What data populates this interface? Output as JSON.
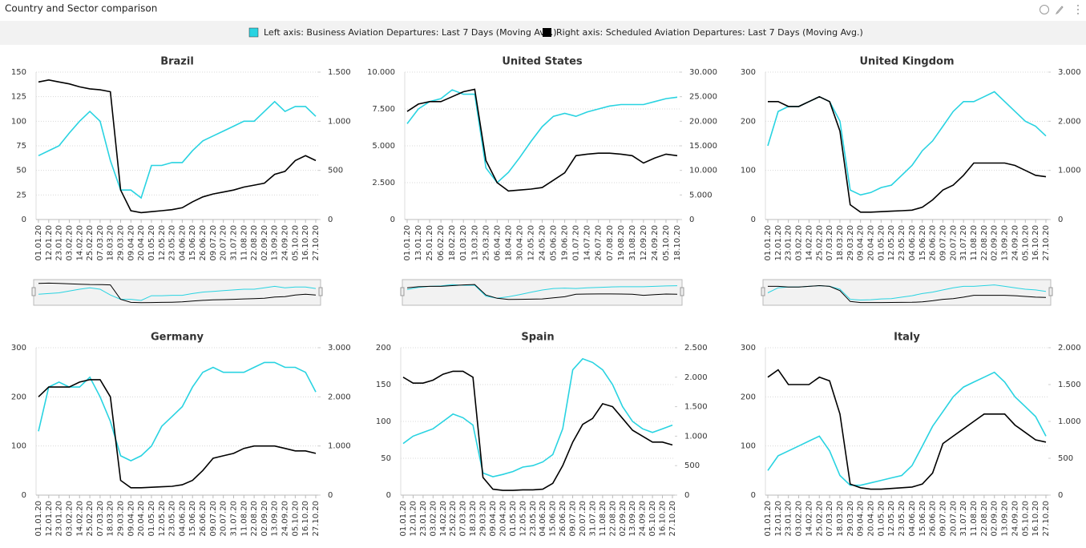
{
  "header": {
    "title": "Country and Sector comparison"
  },
  "chart_data": [
    {
      "type": "line",
      "title": "Brazil",
      "categories": [
        "01.01.20",
        "12.01.20",
        "23.01.20",
        "03.02.20",
        "14.02.20",
        "25.02.20",
        "07.03.20",
        "18.03.20",
        "29.03.20",
        "09.04.20",
        "20.04.20",
        "01.05.20",
        "12.05.20",
        "23.05.20",
        "04.06.20",
        "15.06.20",
        "26.06.20",
        "09.07.20",
        "20.07.20",
        "31.07.20",
        "11.08.20",
        "22.08.20",
        "02.09.20",
        "13.09.20",
        "24.09.20",
        "05.10.20",
        "16.10.20",
        "27.10.20"
      ],
      "series": [
        {
          "name": "Left axis: Business Aviation Departures: Last 7 Days (Moving Avg.)",
          "color": "#29d3e1",
          "values": [
            65,
            70,
            75,
            88,
            100,
            110,
            100,
            60,
            30,
            30,
            22,
            55,
            55,
            58,
            58,
            70,
            80,
            85,
            90,
            95,
            100,
            100,
            110,
            120,
            110,
            115,
            115,
            105
          ]
        },
        {
          "name": "Right axis: Scheduled Aviation Departures: Last 7 Days (Moving Avg.)",
          "color": "#000000",
          "axis": "y2",
          "values": [
            1400,
            1420,
            1400,
            1380,
            1350,
            1330,
            1320,
            1300,
            300,
            90,
            70,
            80,
            90,
            100,
            120,
            180,
            230,
            260,
            280,
            300,
            330,
            350,
            370,
            460,
            490,
            600,
            650,
            600
          ]
        }
      ],
      "ylim": [
        0,
        150
      ],
      "yticks": [
        0,
        25,
        50,
        75,
        100,
        125,
        150
      ],
      "y2lim": [
        0,
        1500
      ],
      "y2ticks": [
        0,
        500,
        {
          "value": 1000,
          "label": "1.000"
        },
        {
          "value": 1500,
          "label": "1.500"
        }
      ],
      "grid": true
    },
    {
      "type": "line",
      "title": "United States",
      "categories": [
        "01.01.20",
        "13.01.20",
        "25.01.20",
        "06.02.20",
        "18.02.20",
        "01.03.20",
        "13.03.20",
        "25.03.20",
        "06.04.20",
        "18.04.20",
        "30.04.20",
        "12.05.20",
        "24.05.20",
        "05.06.20",
        "19.06.20",
        "01.07.20",
        "14.07.20",
        "26.07.20",
        "07.08.20",
        "19.08.20",
        "31.08.20",
        "12.09.20",
        "24.09.20",
        "05.10.20",
        "18.10.20"
      ],
      "series": [
        {
          "color": "#29d3e1",
          "values": [
            6500,
            7500,
            8000,
            8200,
            8800,
            8500,
            8500,
            3500,
            2500,
            3200,
            4200,
            5300,
            6300,
            7000,
            7200,
            7000,
            7300,
            7500,
            7700,
            7800,
            7800,
            7800,
            8000,
            8200,
            8300
          ]
        },
        {
          "color": "#000000",
          "axis": "y2",
          "values": [
            22000,
            23500,
            24000,
            24000,
            25000,
            26000,
            26500,
            12000,
            7500,
            5800,
            6000,
            6200,
            6500,
            8000,
            9500,
            13000,
            13300,
            13500,
            13500,
            13300,
            13000,
            11500,
            12500,
            13300,
            13000
          ]
        }
      ],
      "ylim": [
        0,
        10000
      ],
      "yticks": [
        0,
        {
          "value": 2500,
          "label": "2.500"
        },
        {
          "value": 5000,
          "label": "5.000"
        },
        {
          "value": 7500,
          "label": "7.500"
        },
        {
          "value": 10000,
          "label": "10.000"
        }
      ],
      "y2lim": [
        0,
        30000
      ],
      "y2ticks": [
        0,
        {
          "value": 5000,
          "label": "5.000"
        },
        {
          "value": 10000,
          "label": "10.000"
        },
        {
          "value": 15000,
          "label": "15.000"
        },
        {
          "value": 20000,
          "label": "20.000"
        },
        {
          "value": 25000,
          "label": "25.000"
        },
        {
          "value": 30000,
          "label": "30.000"
        }
      ],
      "grid": true
    },
    {
      "type": "line",
      "title": "United Kingdom",
      "categories": [
        "01.01.20",
        "12.01.20",
        "23.01.20",
        "03.02.20",
        "14.02.20",
        "25.02.20",
        "07.03.20",
        "18.03.20",
        "29.03.20",
        "09.04.20",
        "20.04.20",
        "01.05.20",
        "12.05.20",
        "23.05.20",
        "04.06.20",
        "15.06.20",
        "26.06.20",
        "09.07.20",
        "20.07.20",
        "31.07.20",
        "11.08.20",
        "22.08.20",
        "02.09.20",
        "13.09.20",
        "24.09.20",
        "05.10.20",
        "16.10.20",
        "27.10.20"
      ],
      "series": [
        {
          "color": "#29d3e1",
          "values": [
            150,
            220,
            230,
            230,
            240,
            250,
            240,
            200,
            60,
            50,
            55,
            65,
            70,
            90,
            110,
            140,
            160,
            190,
            220,
            240,
            240,
            250,
            260,
            240,
            220,
            200,
            190,
            170
          ]
        },
        {
          "color": "#000000",
          "axis": "y2",
          "values": [
            2400,
            2400,
            2300,
            2300,
            2400,
            2500,
            2400,
            1800,
            300,
            150,
            150,
            160,
            170,
            180,
            190,
            250,
            400,
            600,
            700,
            900,
            1150,
            1150,
            1150,
            1150,
            1100,
            1000,
            900,
            870
          ]
        }
      ],
      "ylim": [
        0,
        300
      ],
      "yticks": [
        0,
        100,
        200,
        300
      ],
      "y2lim": [
        0,
        3000
      ],
      "y2ticks": [
        0,
        {
          "value": 1000,
          "label": "1.000"
        },
        {
          "value": 2000,
          "label": "2.000"
        },
        {
          "value": 3000,
          "label": "3.000"
        }
      ],
      "grid": true
    },
    {
      "type": "line",
      "title": "Germany",
      "categories": [
        "01.01.20",
        "12.01.20",
        "23.01.20",
        "03.02.20",
        "14.02.20",
        "25.02.20",
        "07.03.20",
        "18.03.20",
        "29.03.20",
        "09.04.20",
        "20.04.20",
        "01.05.20",
        "12.05.20",
        "23.05.20",
        "04.06.20",
        "15.06.20",
        "26.06.20",
        "09.07.20",
        "20.07.20",
        "31.07.20",
        "11.08.20",
        "22.08.20",
        "02.09.20",
        "13.09.20",
        "24.09.20",
        "05.10.20",
        "16.10.20",
        "27.10.20"
      ],
      "series": [
        {
          "color": "#29d3e1",
          "values": [
            130,
            220,
            230,
            220,
            220,
            240,
            200,
            150,
            80,
            70,
            80,
            100,
            140,
            160,
            180,
            220,
            250,
            260,
            250,
            250,
            250,
            260,
            270,
            270,
            260,
            260,
            250,
            210
          ]
        },
        {
          "color": "#000000",
          "axis": "y2",
          "values": [
            2000,
            2200,
            2200,
            2200,
            2300,
            2350,
            2350,
            2000,
            300,
            150,
            150,
            160,
            170,
            180,
            210,
            300,
            500,
            750,
            800,
            850,
            950,
            1000,
            1000,
            1000,
            950,
            900,
            900,
            850
          ]
        }
      ],
      "ylim": [
        0,
        300
      ],
      "yticks": [
        0,
        100,
        200,
        300
      ],
      "y2lim": [
        0,
        3000
      ],
      "y2ticks": [
        0,
        {
          "value": 1000,
          "label": "1.000"
        },
        {
          "value": 2000,
          "label": "2.000"
        },
        {
          "value": 3000,
          "label": "3.000"
        }
      ],
      "grid": true
    },
    {
      "type": "line",
      "title": "Spain",
      "categories": [
        "01.01.20",
        "12.01.20",
        "23.01.20",
        "03.02.20",
        "14.02.20",
        "25.02.20",
        "07.03.20",
        "18.03.20",
        "29.03.20",
        "09.04.20",
        "20.04.20",
        "01.05.20",
        "12.05.20",
        "23.05.20",
        "04.06.20",
        "15.06.20",
        "26.06.20",
        "09.07.20",
        "20.07.20",
        "31.07.20",
        "11.08.20",
        "22.08.20",
        "02.09.20",
        "13.09.20",
        "24.09.20",
        "05.10.20",
        "16.10.20",
        "27.10.20"
      ],
      "series": [
        {
          "color": "#29d3e1",
          "values": [
            70,
            80,
            85,
            90,
            100,
            110,
            105,
            95,
            30,
            25,
            28,
            32,
            38,
            40,
            45,
            55,
            90,
            170,
            185,
            180,
            170,
            150,
            120,
            100,
            90,
            85,
            90,
            95
          ]
        },
        {
          "color": "#000000",
          "axis": "y2",
          "values": [
            2000,
            1900,
            1900,
            1950,
            2050,
            2100,
            2100,
            2000,
            300,
            100,
            80,
            80,
            90,
            90,
            100,
            200,
            500,
            900,
            1200,
            1300,
            1550,
            1500,
            1300,
            1100,
            1000,
            900,
            900,
            850
          ]
        }
      ],
      "ylim": [
        0,
        200
      ],
      "yticks": [
        0,
        50,
        100,
        150,
        200
      ],
      "y2lim": [
        0,
        2500
      ],
      "y2ticks": [
        0,
        500,
        {
          "value": 1000,
          "label": "1.000"
        },
        {
          "value": 1500,
          "label": "1.500"
        },
        {
          "value": 2000,
          "label": "2.000"
        },
        {
          "value": 2500,
          "label": "2.500"
        }
      ],
      "grid": true
    },
    {
      "type": "line",
      "title": "Italy",
      "categories": [
        "01.01.20",
        "12.01.20",
        "23.01.20",
        "03.02.20",
        "14.02.20",
        "25.02.20",
        "07.03.20",
        "18.03.20",
        "29.03.20",
        "09.04.20",
        "20.04.20",
        "01.05.20",
        "12.05.20",
        "23.05.20",
        "04.06.20",
        "15.06.20",
        "26.06.20",
        "09.07.20",
        "20.07.20",
        "31.07.20",
        "11.08.20",
        "22.08.20",
        "02.09.20",
        "13.09.20",
        "24.09.20",
        "05.10.20",
        "16.10.20",
        "27.10.20"
      ],
      "series": [
        {
          "color": "#29d3e1",
          "values": [
            50,
            80,
            90,
            100,
            110,
            120,
            90,
            40,
            20,
            20,
            25,
            30,
            35,
            40,
            60,
            100,
            140,
            170,
            200,
            220,
            230,
            240,
            250,
            230,
            200,
            180,
            160,
            120
          ]
        },
        {
          "color": "#000000",
          "axis": "y2",
          "values": [
            1600,
            1700,
            1500,
            1500,
            1500,
            1600,
            1550,
            1100,
            150,
            100,
            80,
            80,
            90,
            100,
            110,
            150,
            300,
            700,
            800,
            900,
            1000,
            1100,
            1100,
            1100,
            950,
            850,
            750,
            720
          ]
        }
      ],
      "ylim": [
        0,
        300
      ],
      "yticks": [
        0,
        100,
        200,
        300
      ],
      "y2lim": [
        0,
        2000
      ],
      "y2ticks": [
        0,
        500,
        {
          "value": 1000,
          "label": "1.000"
        },
        {
          "value": 1500,
          "label": "1.500"
        },
        {
          "value": 2000,
          "label": "2.000"
        }
      ],
      "grid": true
    }
  ]
}
